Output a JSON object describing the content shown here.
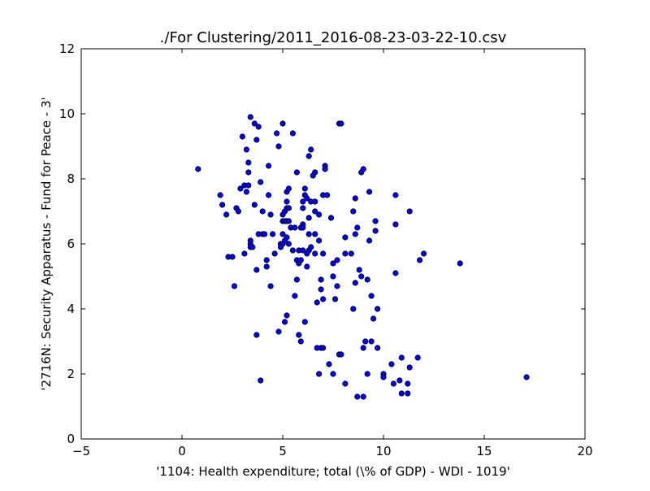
{
  "chart_data": {
    "type": "scatter",
    "title": "./For Clustering/2011_2016-08-23-03-22-10.csv",
    "xlabel": "'1104: Health expenditure; total  (\\% of GDP) - WDI - 1019'",
    "ylabel": "'2716N: Security Apparatus - Fund for Peace - 3'",
    "xlim": [
      -5,
      20
    ],
    "ylim": [
      0,
      12
    ],
    "xticks": [
      -5,
      0,
      5,
      10,
      15,
      20
    ],
    "yticks": [
      0,
      2,
      4,
      6,
      8,
      10,
      12
    ],
    "grid": false,
    "marker_color": "#0000ff",
    "marker_edge_color": "#000000",
    "points": [
      [
        0.8,
        8.3
      ],
      [
        1.9,
        7.5
      ],
      [
        2.0,
        7.2
      ],
      [
        2.2,
        6.9
      ],
      [
        2.3,
        5.6
      ],
      [
        2.5,
        5.6
      ],
      [
        2.6,
        4.7
      ],
      [
        2.7,
        7.1
      ],
      [
        2.8,
        7.0
      ],
      [
        2.9,
        7.7
      ],
      [
        3.0,
        9.3
      ],
      [
        3.1,
        7.8
      ],
      [
        3.1,
        5.7
      ],
      [
        3.2,
        8.9
      ],
      [
        3.2,
        7.6
      ],
      [
        3.3,
        8.5
      ],
      [
        3.3,
        8.2
      ],
      [
        3.3,
        7.8
      ],
      [
        3.4,
        9.9
      ],
      [
        3.4,
        6.1
      ],
      [
        3.4,
        6.0
      ],
      [
        3.4,
        5.9
      ],
      [
        3.5,
        5.9
      ],
      [
        3.6,
        9.7
      ],
      [
        3.6,
        7.2
      ],
      [
        3.7,
        9.2
      ],
      [
        3.7,
        5.2
      ],
      [
        3.7,
        3.2
      ],
      [
        3.8,
        9.6
      ],
      [
        3.8,
        6.3
      ],
      [
        3.9,
        7.9
      ],
      [
        3.9,
        1.8
      ],
      [
        4.0,
        7.0
      ],
      [
        4.0,
        6.3
      ],
      [
        4.1,
        6.3
      ],
      [
        4.2,
        5.5
      ],
      [
        4.2,
        5.3
      ],
      [
        4.3,
        8.4
      ],
      [
        4.3,
        7.5
      ],
      [
        4.4,
        6.9
      ],
      [
        4.4,
        4.7
      ],
      [
        4.5,
        6.3
      ],
      [
        4.6,
        5.7
      ],
      [
        4.7,
        9.4
      ],
      [
        4.8,
        9.0
      ],
      [
        4.8,
        3.3
      ],
      [
        4.9,
        6.0
      ],
      [
        4.9,
        5.9
      ],
      [
        5.0,
        9.7
      ],
      [
        5.0,
        6.9
      ],
      [
        5.0,
        6.7
      ],
      [
        5.0,
        6.3
      ],
      [
        5.0,
        6.0
      ],
      [
        5.1,
        7.0
      ],
      [
        5.1,
        6.7
      ],
      [
        5.1,
        6.1
      ],
      [
        5.1,
        3.6
      ],
      [
        5.2,
        7.6
      ],
      [
        5.2,
        7.3
      ],
      [
        5.2,
        7.1
      ],
      [
        5.2,
        6.7
      ],
      [
        5.2,
        6.2
      ],
      [
        5.2,
        3.8
      ],
      [
        5.3,
        7.7
      ],
      [
        5.3,
        7.1
      ],
      [
        5.3,
        6.7
      ],
      [
        5.3,
        6.0
      ],
      [
        5.4,
        6.5
      ],
      [
        5.5,
        9.4
      ],
      [
        5.5,
        5.8
      ],
      [
        5.6,
        4.4
      ],
      [
        5.6,
        6.5
      ],
      [
        5.7,
        8.2
      ],
      [
        5.7,
        5.5
      ],
      [
        5.7,
        4.9
      ],
      [
        5.8,
        5.8
      ],
      [
        5.8,
        5.4
      ],
      [
        5.8,
        3.2
      ],
      [
        5.9,
        6.5
      ],
      [
        5.9,
        5.5
      ],
      [
        5.9,
        3.0
      ],
      [
        6.0,
        7.3
      ],
      [
        6.0,
        7.1
      ],
      [
        6.0,
        6.6
      ],
      [
        6.0,
        6.5
      ],
      [
        6.0,
        5.8
      ],
      [
        6.1,
        7.7
      ],
      [
        6.1,
        7.5
      ],
      [
        6.1,
        3.6
      ],
      [
        6.2,
        7.4
      ],
      [
        6.2,
        5.7
      ],
      [
        6.2,
        5.3
      ],
      [
        6.3,
        8.7
      ],
      [
        6.3,
        6.8
      ],
      [
        6.3,
        6.3
      ],
      [
        6.3,
        5.8
      ],
      [
        6.4,
        8.9
      ],
      [
        6.4,
        7.3
      ],
      [
        6.4,
        5.9
      ],
      [
        6.5,
        8.1
      ],
      [
        6.6,
        8.2
      ],
      [
        6.6,
        7.3
      ],
      [
        6.6,
        7.0
      ],
      [
        6.6,
        6.3
      ],
      [
        6.6,
        5.7
      ],
      [
        6.7,
        4.2
      ],
      [
        6.7,
        2.8
      ],
      [
        6.8,
        6.9
      ],
      [
        6.8,
        6.1
      ],
      [
        6.8,
        2.0
      ],
      [
        6.9,
        4.9
      ],
      [
        6.9,
        4.6
      ],
      [
        6.9,
        2.8
      ],
      [
        7.0,
        7.5
      ],
      [
        7.0,
        5.7
      ],
      [
        7.0,
        4.3
      ],
      [
        7.0,
        2.8
      ],
      [
        7.1,
        8.4
      ],
      [
        7.1,
        8.3
      ],
      [
        7.2,
        7.5
      ],
      [
        7.3,
        2.3
      ],
      [
        7.4,
        6.8
      ],
      [
        7.5,
        5.4
      ],
      [
        7.5,
        5.0
      ],
      [
        7.5,
        2.0
      ],
      [
        7.6,
        4.3
      ],
      [
        7.7,
        5.5
      ],
      [
        7.7,
        4.7
      ],
      [
        7.8,
        9.7
      ],
      [
        7.8,
        2.6
      ],
      [
        7.9,
        9.7
      ],
      [
        7.9,
        2.6
      ],
      [
        8.1,
        6.2
      ],
      [
        8.1,
        5.7
      ],
      [
        8.1,
        1.7
      ],
      [
        8.4,
        5.7
      ],
      [
        8.5,
        7.0
      ],
      [
        8.5,
        4.0
      ],
      [
        8.6,
        7.4
      ],
      [
        8.6,
        6.3
      ],
      [
        8.6,
        4.8
      ],
      [
        8.7,
        6.5
      ],
      [
        8.7,
        1.3
      ],
      [
        8.8,
        5.2
      ],
      [
        8.9,
        8.2
      ],
      [
        8.9,
        5.0
      ],
      [
        9.0,
        8.3
      ],
      [
        9.0,
        2.8
      ],
      [
        9.0,
        1.3
      ],
      [
        9.1,
        3.0
      ],
      [
        9.2,
        4.9
      ],
      [
        9.2,
        2.0
      ],
      [
        9.3,
        7.6
      ],
      [
        9.3,
        6.1
      ],
      [
        9.4,
        4.4
      ],
      [
        9.4,
        3.0
      ],
      [
        9.5,
        3.7
      ],
      [
        9.6,
        6.7
      ],
      [
        9.6,
        6.4
      ],
      [
        9.7,
        4.0
      ],
      [
        9.7,
        2.8
      ],
      [
        10.0,
        2.0
      ],
      [
        10.0,
        1.9
      ],
      [
        10.4,
        2.3
      ],
      [
        10.5,
        1.7
      ],
      [
        10.6,
        7.5
      ],
      [
        10.6,
        6.6
      ],
      [
        10.6,
        5.1
      ],
      [
        10.8,
        1.8
      ],
      [
        10.9,
        2.5
      ],
      [
        10.9,
        1.4
      ],
      [
        11.2,
        1.7
      ],
      [
        11.2,
        1.4
      ],
      [
        11.3,
        7.0
      ],
      [
        11.3,
        2.2
      ],
      [
        11.7,
        2.5
      ],
      [
        11.8,
        5.5
      ],
      [
        12.0,
        5.7
      ],
      [
        13.8,
        5.4
      ],
      [
        17.1,
        1.9
      ]
    ]
  }
}
